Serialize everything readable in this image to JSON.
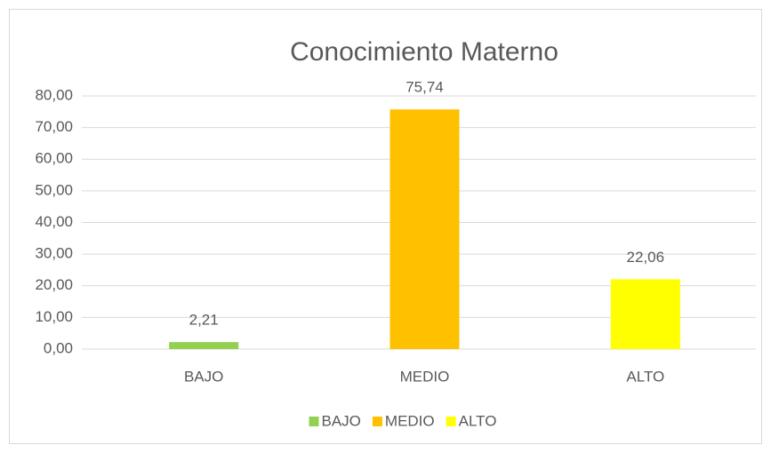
{
  "chart_data": {
    "type": "bar",
    "title": "Conocimiento Materno",
    "categories": [
      "BAJO",
      "MEDIO",
      "ALTO"
    ],
    "values": [
      2.21,
      75.74,
      22.06
    ],
    "value_labels": [
      "2,21",
      "75,74",
      "22,06"
    ],
    "colors": [
      "#92d050",
      "#ffc000",
      "#ffff00"
    ],
    "ylim": [
      0,
      80
    ],
    "yticks": [
      {
        "value": 0,
        "label": "0,00"
      },
      {
        "value": 10,
        "label": "10,00"
      },
      {
        "value": 20,
        "label": "20,00"
      },
      {
        "value": 30,
        "label": "30,00"
      },
      {
        "value": 40,
        "label": "40,00"
      },
      {
        "value": 50,
        "label": "50,00"
      },
      {
        "value": 60,
        "label": "60,00"
      },
      {
        "value": 70,
        "label": "70,00"
      },
      {
        "value": 80,
        "label": "80,00"
      }
    ],
    "grid": true,
    "legend": "bottom"
  }
}
